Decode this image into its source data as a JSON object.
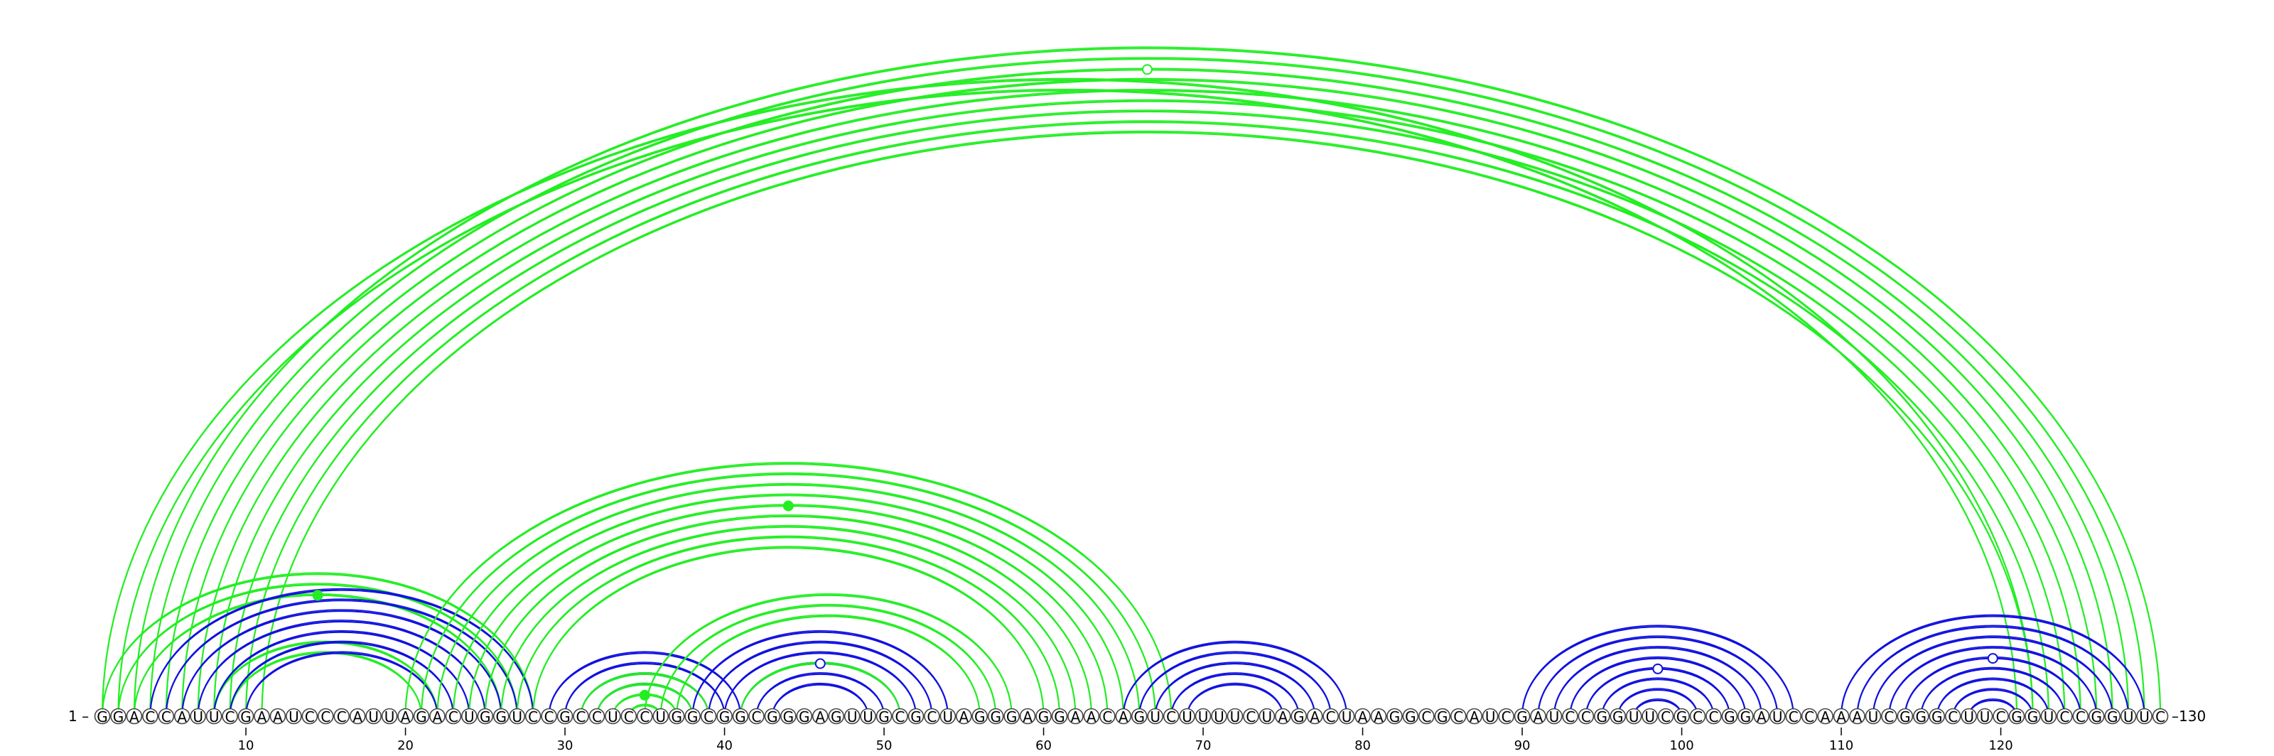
{
  "diagram": {
    "sequence": "GGACCAUUCGAAUCCCAUUAGACUGGUCCGCCUCCUGGCGGCGGGAGUUGCGCUAGGGAGGAACAGUCUUUUCUAGACUAAGGCGCAUCGAUCCGGUUCGCCGGAUCCAAAUCGGGCUUCGGUCCGGUUC",
    "start_label": "1 –",
    "end_label": "–130",
    "ticks": [
      "10",
      "20",
      "30",
      "40",
      "50",
      "60",
      "70",
      "80",
      "90",
      "100",
      "110",
      "120"
    ],
    "colors": {
      "green": "#22ee22",
      "blue": "#1010e0"
    },
    "helices": [
      {
        "color": "green",
        "pairs": [
          [
            1,
            122
          ],
          [
            2,
            121
          ]
        ],
        "marker": null
      },
      {
        "color": "green",
        "pairs": [
          [
            3,
            130
          ],
          [
            4,
            129
          ],
          [
            5,
            128
          ],
          [
            6,
            127
          ],
          [
            7,
            126
          ]
        ],
        "marker": "open"
      },
      {
        "color": "green",
        "pairs": [
          [
            8,
            125
          ],
          [
            9,
            124
          ],
          [
            10,
            123
          ],
          [
            11,
            122
          ]
        ],
        "marker": null
      },
      {
        "color": "green",
        "pairs": [
          [
            1,
            28
          ],
          [
            2,
            27
          ],
          [
            3,
            26
          ],
          [
            8,
            22
          ],
          [
            9,
            21
          ]
        ],
        "marker": "filled"
      },
      {
        "color": "blue",
        "pairs": [
          [
            4,
            28
          ],
          [
            5,
            27
          ],
          [
            6,
            26
          ],
          [
            7,
            25
          ],
          [
            8,
            24
          ],
          [
            9,
            23
          ],
          [
            10,
            22
          ]
        ],
        "marker": null
      },
      {
        "color": "green",
        "pairs": [
          [
            20,
            68
          ],
          [
            21,
            67
          ],
          [
            22,
            66
          ],
          [
            23,
            65
          ],
          [
            24,
            64
          ],
          [
            25,
            63
          ],
          [
            26,
            62
          ],
          [
            27,
            61
          ],
          [
            28,
            60
          ]
        ],
        "marker": "filled"
      },
      {
        "color": "blue",
        "pairs": [
          [
            29,
            41
          ],
          [
            30,
            40
          ],
          [
            31,
            39
          ],
          [
            32,
            38
          ]
        ],
        "marker": null
      },
      {
        "color": "green",
        "pairs": [
          [
            31,
            39
          ],
          [
            32,
            38
          ],
          [
            33,
            37
          ],
          [
            34,
            36
          ]
        ],
        "marker": "filled"
      },
      {
        "color": "green",
        "pairs": [
          [
            35,
            58
          ],
          [
            36,
            57
          ],
          [
            37,
            56
          ]
        ],
        "marker": null
      },
      {
        "color": "blue",
        "pairs": [
          [
            38,
            54
          ],
          [
            39,
            53
          ],
          [
            40,
            52
          ],
          [
            41,
            51
          ],
          [
            42,
            50
          ],
          [
            43,
            49
          ]
        ],
        "marker": "open"
      },
      {
        "color": "green",
        "pairs": [
          [
            41,
            51
          ]
        ],
        "marker": null
      },
      {
        "color": "blue",
        "pairs": [
          [
            65,
            79
          ],
          [
            66,
            78
          ],
          [
            67,
            77
          ],
          [
            68,
            76
          ],
          [
            69,
            75
          ]
        ],
        "marker": null
      },
      {
        "color": "blue",
        "pairs": [
          [
            90,
            107
          ],
          [
            91,
            106
          ],
          [
            92,
            105
          ],
          [
            93,
            104
          ],
          [
            94,
            103
          ],
          [
            95,
            102
          ],
          [
            96,
            101
          ],
          [
            97,
            100
          ]
        ],
        "marker": "open"
      },
      {
        "color": "blue",
        "pairs": [
          [
            110,
            129
          ],
          [
            111,
            128
          ],
          [
            112,
            127
          ],
          [
            113,
            126
          ],
          [
            114,
            125
          ],
          [
            115,
            124
          ],
          [
            116,
            123
          ],
          [
            117,
            122
          ],
          [
            118,
            121
          ]
        ],
        "marker": "open"
      }
    ]
  }
}
